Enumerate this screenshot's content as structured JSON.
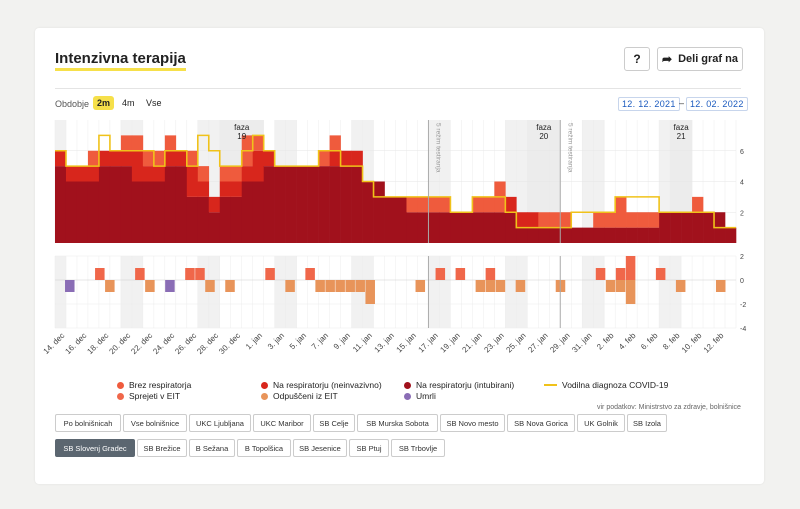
{
  "header": {
    "title": "Intenzivna terapija",
    "help_label": "?",
    "share_label": "Deli graf na"
  },
  "period": {
    "label": "Obdobje",
    "options": [
      "2m",
      "4m",
      "Vse"
    ],
    "selected": "2m",
    "from": "12. 12. 2021",
    "separator": "–",
    "to": "12. 02. 2022"
  },
  "legend": [
    {
      "label": "Brez respiratorja",
      "color": "#ef5b3d",
      "kind": "dot"
    },
    {
      "label": "Na respiratorju (neinvazivno)",
      "color": "#d8261c",
      "kind": "dot"
    },
    {
      "label": "Na respiratorju (intubirani)",
      "color": "#a1111c",
      "kind": "dot"
    },
    {
      "label": "Vodilna diagnoza COVID-19",
      "color": "#f0c21a",
      "kind": "line"
    },
    {
      "label": "Sprejeti v EIT",
      "color": "#f0674a",
      "kind": "dot"
    },
    {
      "label": "Odpuščeni iz EIT",
      "color": "#e8945a",
      "kind": "dot"
    },
    {
      "label": "Umrli",
      "color": "#8a6db5",
      "kind": "dot"
    }
  ],
  "source": "vir podatkov: Ministrstvo za zdravje, bolnišnice",
  "hospitals": [
    "Po bolnišnicah",
    "Vse bolnišnice",
    "UKC Ljubljana",
    "UKC Maribor",
    "SB Celje",
    "SB Murska Sobota",
    "SB Novo mesto",
    "SB Nova Gorica",
    "UK Golnik",
    "SB Izola",
    "SB Slovenj Gradec",
    "SB Brežice",
    "B Sežana",
    "B Topolšica",
    "SB Jesenice",
    "SB Ptuj",
    "SB Trbovlje"
  ],
  "selected_hospital": "SB Slovenj Gradec",
  "chart_data": [
    {
      "type": "bar",
      "stacked": true,
      "x_labels": [
        "14. dec",
        "16. dec",
        "18. dec",
        "20. dec",
        "22. dec",
        "24. dec",
        "26. dec",
        "28. dec",
        "30. dec",
        "1. jan",
        "3. jan",
        "5. jan",
        "7. jan",
        "9. jan",
        "11. jan",
        "13. jan",
        "15. jan",
        "17. jan",
        "19. jan",
        "21. jan",
        "23. jan",
        "25. jan",
        "27. jan",
        "29. jan",
        "31. jan",
        "2. feb",
        "4. feb",
        "6. feb",
        "8. feb",
        "10. feb",
        "12. feb"
      ],
      "days": 62,
      "ylim": [
        0,
        8
      ],
      "yticks": [
        2,
        4,
        6
      ],
      "phases": [
        {
          "label": "faza",
          "number": "19",
          "start_day": 15,
          "end_day": 18
        },
        {
          "label": "faza",
          "number": "20",
          "start_day": 43,
          "end_day": 45
        },
        {
          "label": "faza",
          "number": "21",
          "start_day": 56,
          "end_day": 57
        }
      ],
      "markers": [
        {
          "day": 34,
          "label": "5 režim testiranja"
        },
        {
          "day": 46,
          "label": "5 režim testiranja"
        }
      ],
      "series": [
        {
          "name": "Na respiratorju (intubirani)",
          "color": "#a1111c",
          "values": [
            5,
            4,
            4,
            4,
            5,
            5,
            5,
            4,
            4,
            4,
            5,
            5,
            3,
            3,
            2,
            3,
            3,
            4,
            4,
            5,
            5,
            5,
            5,
            5,
            5,
            5,
            5,
            5,
            4,
            4,
            3,
            3,
            2,
            2,
            2,
            2,
            2,
            2,
            2,
            2,
            2,
            2,
            1,
            1,
            1,
            1,
            1,
            1,
            1,
            1,
            1,
            1,
            1,
            1,
            1,
            2,
            2,
            2,
            2,
            2,
            2,
            1
          ]
        },
        {
          "name": "Na respiratorju (neinvazivno)",
          "color": "#d8261c",
          "values": [
            1,
            1,
            1,
            1,
            1,
            1,
            1,
            2,
            1,
            1,
            1,
            1,
            2,
            1,
            1,
            1,
            1,
            1,
            2,
            1,
            0,
            0,
            0,
            0,
            0,
            1,
            1,
            1,
            0,
            0,
            0,
            0,
            0,
            0,
            0,
            0,
            0,
            0,
            0,
            0,
            0,
            1,
            1,
            1,
            0,
            0,
            0,
            0,
            0,
            0,
            0,
            0,
            0,
            0,
            0,
            0,
            0,
            0,
            0,
            0,
            0,
            0
          ]
        },
        {
          "name": "Brez respiratorja",
          "color": "#ef5b3d",
          "values": [
            0,
            0,
            0,
            1,
            0,
            0,
            1,
            1,
            1,
            1,
            1,
            0,
            1,
            1,
            0,
            1,
            1,
            2,
            1,
            0,
            0,
            0,
            0,
            0,
            1,
            1,
            0,
            0,
            0,
            0,
            0,
            0,
            1,
            1,
            1,
            1,
            0,
            0,
            1,
            1,
            2,
            0,
            0,
            0,
            1,
            1,
            1,
            0,
            0,
            1,
            1,
            2,
            1,
            1,
            1,
            0,
            0,
            0,
            1,
            0,
            0,
            0
          ]
        }
      ],
      "line": {
        "name": "Vodilna diagnoza COVID-19",
        "color": "#f0c21a",
        "values": [
          6,
          5,
          5,
          5,
          7,
          6,
          6,
          6,
          6,
          5,
          6,
          6,
          5,
          7,
          6,
          5,
          5,
          6,
          7,
          6,
          5,
          5,
          5,
          5,
          6,
          6,
          5,
          5,
          4,
          3,
          3,
          3,
          3,
          3,
          3,
          3,
          2,
          2,
          3,
          3,
          3,
          2,
          1,
          1,
          1,
          1,
          1,
          2,
          2,
          2,
          2,
          3,
          3,
          3,
          3,
          2,
          2,
          2,
          2,
          2,
          1,
          1
        ]
      }
    },
    {
      "type": "bar",
      "ylim": [
        -4,
        2
      ],
      "yticks": [
        2,
        0,
        -2,
        -4
      ],
      "series": [
        {
          "name": "Sprejeti v EIT",
          "color": "#f0674a",
          "events": [
            [
              4,
              1
            ],
            [
              8,
              1
            ],
            [
              13,
              1
            ],
            [
              14,
              1
            ],
            [
              21,
              1
            ],
            [
              25,
              1
            ],
            [
              38,
              1
            ],
            [
              40,
              1
            ],
            [
              43,
              1
            ],
            [
              54,
              1
            ],
            [
              56,
              1
            ],
            [
              60,
              1
            ],
            [
              57,
              2
            ]
          ]
        },
        {
          "name": "Odpuščeni iz EIT",
          "color": "#e8945a",
          "events": [
            [
              5,
              -1
            ],
            [
              9,
              -1
            ],
            [
              15,
              -1
            ],
            [
              17,
              -1
            ],
            [
              23,
              -1
            ],
            [
              26,
              -1
            ],
            [
              27,
              -1
            ],
            [
              28,
              -1
            ],
            [
              29,
              -1
            ],
            [
              30,
              -1
            ],
            [
              31,
              -2
            ],
            [
              36,
              -1
            ],
            [
              42,
              -1
            ],
            [
              43,
              -1
            ],
            [
              44,
              -1
            ],
            [
              46,
              -1
            ],
            [
              50,
              -1
            ],
            [
              55,
              -1
            ],
            [
              56,
              -1
            ],
            [
              57,
              -2
            ],
            [
              62,
              -1
            ],
            [
              66,
              -1
            ]
          ]
        },
        {
          "name": "Umrli",
          "color": "#8a6db5",
          "events": [
            [
              1,
              -1
            ],
            [
              11,
              -1
            ]
          ]
        }
      ]
    }
  ]
}
